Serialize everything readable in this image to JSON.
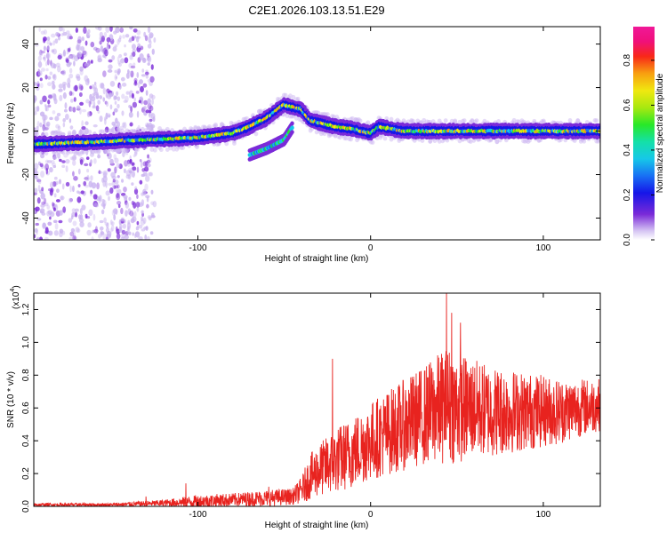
{
  "title": "C2E1.2026.103.13.51.E29",
  "chart_data": [
    {
      "type": "heatmap",
      "xlabel": "Height of straight line (km)",
      "ylabel": "Frequency (Hz)",
      "xlim": [
        -195,
        133
      ],
      "ylim": [
        -50,
        48
      ],
      "xticks": [
        -100,
        0,
        100
      ],
      "yticks": [
        -40,
        -20,
        0,
        20,
        40
      ],
      "colorbar": {
        "label": "Normalized spectral amplitude",
        "range": [
          0,
          0.95
        ],
        "ticks": [
          0.0,
          0.2,
          0.4,
          0.6,
          0.8
        ]
      },
      "ridge": {
        "description_points_x": [
          -195,
          -160,
          -130,
          -100,
          -80,
          -70,
          -60,
          -50,
          -40,
          -35,
          -30,
          -20,
          -10,
          0,
          5,
          20,
          50,
          80,
          100,
          130
        ],
        "description_points_y": [
          -6,
          -5,
          -4,
          -3,
          -1,
          2,
          6,
          12,
          10,
          5,
          4,
          2,
          1,
          -1,
          2,
          0,
          0,
          0,
          0,
          0
        ],
        "lower_branch_x": [
          -70,
          -60,
          -50,
          -45
        ],
        "lower_branch_y": [
          -11,
          -8,
          -4,
          2
        ]
      }
    },
    {
      "type": "line",
      "xlabel": "Height of straight line (km)",
      "ylabel": "SNR (10 * v/v)",
      "y_multiplier": "(x10",
      "y_multiplier_exp": "4",
      "xlim": [
        -195,
        133
      ],
      "ylim": [
        0,
        1.3
      ],
      "xticks": [
        -100,
        0,
        100
      ],
      "yticks": [
        0.0,
        0.2,
        0.4,
        0.6,
        0.8,
        1.0,
        1.2
      ],
      "series": [
        {
          "name": "SNR",
          "color": "#e8231f",
          "envelope_x": [
            -195,
            -150,
            -120,
            -100,
            -80,
            -60,
            -45,
            -40,
            -35,
            -30,
            -25,
            -20,
            -10,
            0,
            10,
            20,
            30,
            40,
            45,
            50,
            60,
            70,
            80,
            90,
            100,
            110,
            120,
            133
          ],
          "envelope_mean": [
            0.01,
            0.01,
            0.02,
            0.03,
            0.04,
            0.05,
            0.06,
            0.1,
            0.18,
            0.22,
            0.25,
            0.28,
            0.33,
            0.4,
            0.45,
            0.5,
            0.55,
            0.6,
            0.62,
            0.6,
            0.6,
            0.58,
            0.58,
            0.58,
            0.58,
            0.58,
            0.6,
            0.62
          ],
          "envelope_spread": [
            0.01,
            0.01,
            0.02,
            0.04,
            0.04,
            0.05,
            0.05,
            0.08,
            0.14,
            0.16,
            0.18,
            0.2,
            0.22,
            0.24,
            0.26,
            0.28,
            0.3,
            0.34,
            0.36,
            0.34,
            0.3,
            0.28,
            0.26,
            0.24,
            0.22,
            0.2,
            0.18,
            0.16
          ],
          "peaks": [
            {
              "x": -130,
              "y": 0.06
            },
            {
              "x": -107,
              "y": 0.14
            },
            {
              "x": -59,
              "y": 0.12
            },
            {
              "x": -22,
              "y": 0.9
            },
            {
              "x": 44,
              "y": 1.3
            },
            {
              "x": 47,
              "y": 1.18
            },
            {
              "x": 52,
              "y": 1.12
            }
          ]
        }
      ]
    }
  ]
}
